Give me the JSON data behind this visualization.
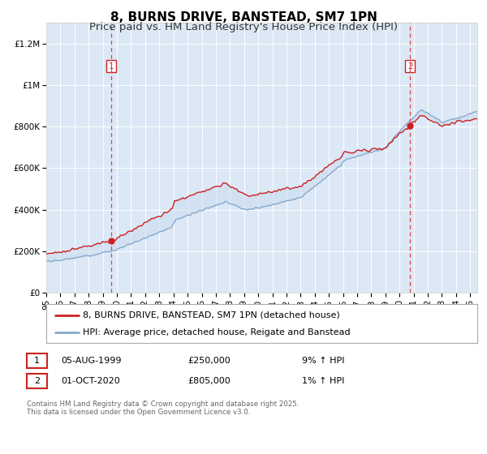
{
  "title": "8, BURNS DRIVE, BANSTEAD, SM7 1PN",
  "subtitle": "Price paid vs. HM Land Registry's House Price Index (HPI)",
  "plot_bg_color": "#dce8f5",
  "fig_bg_color": "#ffffff",
  "red_line_color": "#cc2222",
  "blue_line_color": "#88aacc",
  "fill_color": "#ccddf0",
  "marker_color": "#cc2222",
  "dashed_line_color": "#dd4444",
  "ylim": [
    0,
    1300000
  ],
  "yticks": [
    0,
    200000,
    400000,
    600000,
    800000,
    1000000,
    1200000
  ],
  "ytick_labels": [
    "£0",
    "£200K",
    "£400K",
    "£600K",
    "£800K",
    "£1M",
    "£1.2M"
  ],
  "x_start_year": 1995,
  "x_end_year": 2025,
  "purchase1_year": 1999.583,
  "purchase1_value": 250000,
  "purchase1_label": "1",
  "purchase2_year": 2020.75,
  "purchase2_value": 805000,
  "purchase2_label": "2",
  "legend_line1": "8, BURNS DRIVE, BANSTEAD, SM7 1PN (detached house)",
  "legend_line2": "HPI: Average price, detached house, Reigate and Banstead",
  "annotation1_date": "05-AUG-1999",
  "annotation1_price": "£250,000",
  "annotation1_hpi": "9% ↑ HPI",
  "annotation2_date": "01-OCT-2020",
  "annotation2_price": "£805,000",
  "annotation2_hpi": "1% ↑ HPI",
  "footer": "Contains HM Land Registry data © Crown copyright and database right 2025.\nThis data is licensed under the Open Government Licence v3.0.",
  "title_fontsize": 11,
  "subtitle_fontsize": 9.5,
  "tick_fontsize": 7.5,
  "legend_fontsize": 8,
  "annot_fontsize": 8
}
